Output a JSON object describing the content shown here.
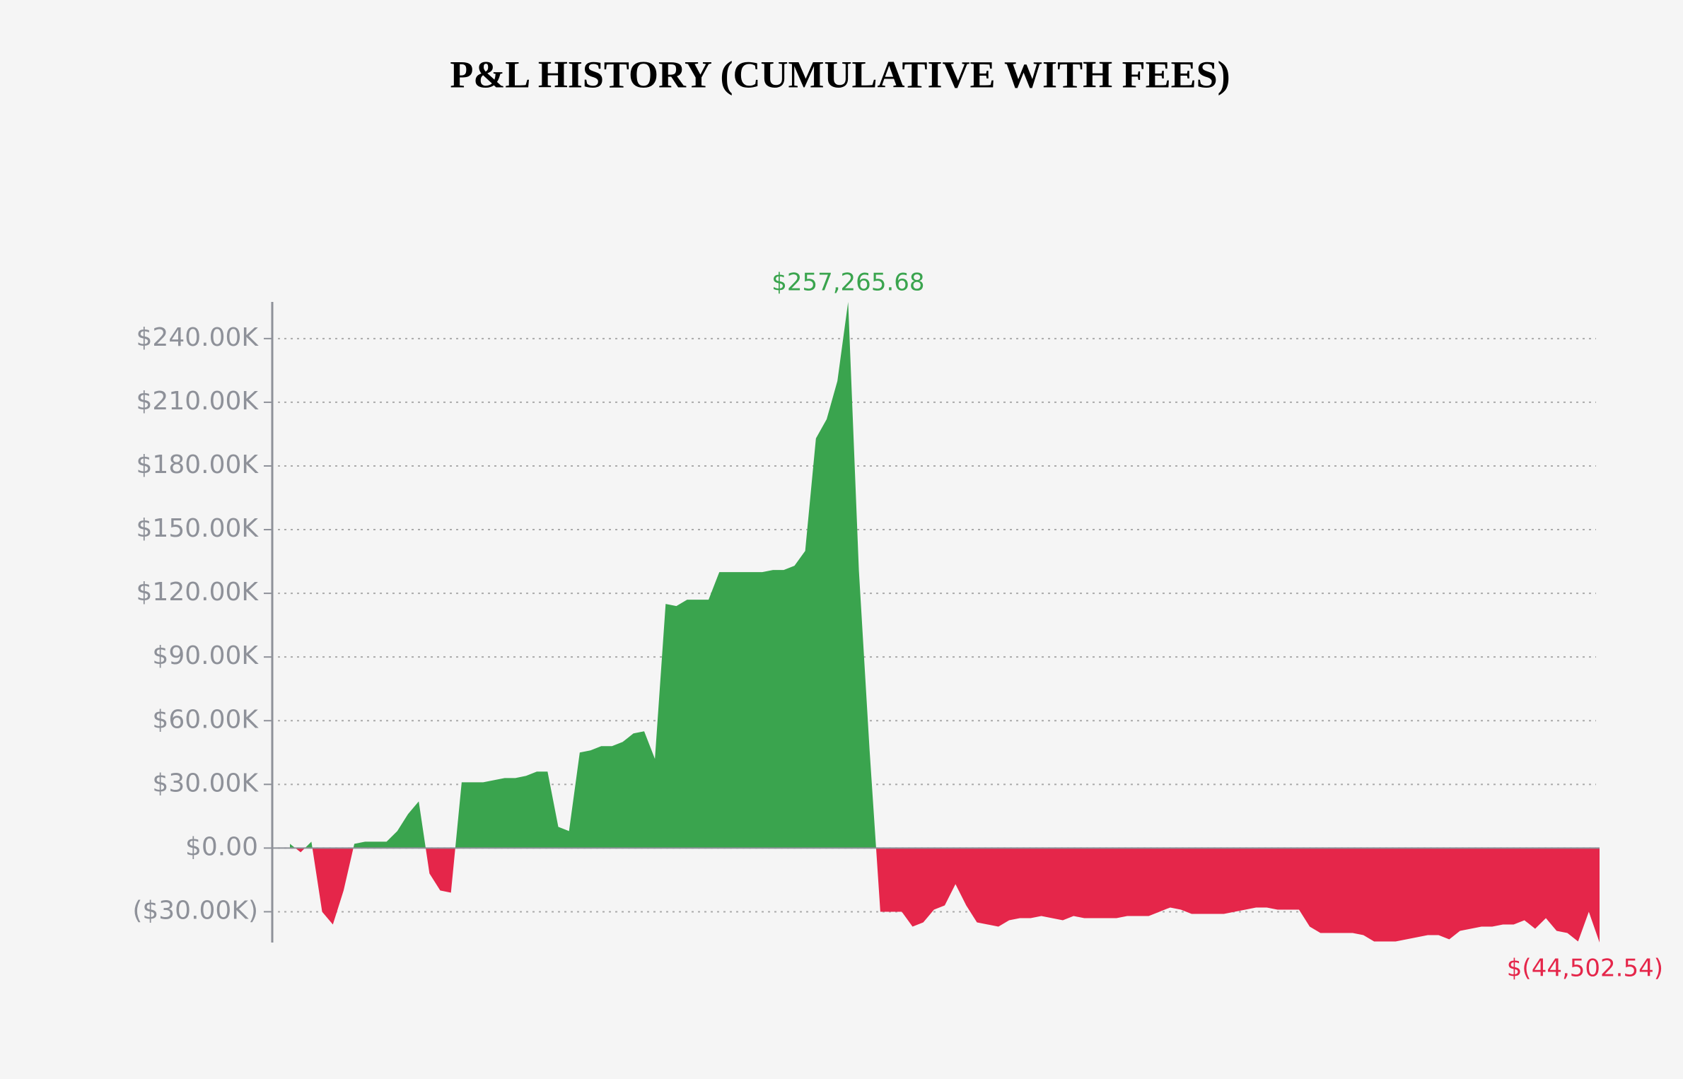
{
  "chart_data": {
    "type": "area",
    "title": "P&L HISTORY (CUMULATIVE WITH FEES)",
    "positive_color": "#3aa44e",
    "negative_color": "#e5264a",
    "grid": true,
    "ylim": [
      -44502.54,
      257265.68
    ],
    "yticks": [
      {
        "value": -30000,
        "label": "($30.00K)"
      },
      {
        "value": 0,
        "label": "$0.00"
      },
      {
        "value": 30000,
        "label": "$30.00K"
      },
      {
        "value": 60000,
        "label": "$60.00K"
      },
      {
        "value": 90000,
        "label": "$90.00K"
      },
      {
        "value": 120000,
        "label": "$120.00K"
      },
      {
        "value": 150000,
        "label": "$150.00K"
      },
      {
        "value": 180000,
        "label": "$180.00K"
      },
      {
        "value": 210000,
        "label": "$210.00K"
      },
      {
        "value": 240000,
        "label": "$240.00K"
      }
    ],
    "values": [
      2000,
      -2000,
      3000,
      -30000,
      -36000,
      -20000,
      2000,
      3000,
      3000,
      3000,
      8000,
      16000,
      22000,
      -12000,
      -20000,
      -21000,
      31000,
      31000,
      31000,
      32000,
      33000,
      33000,
      34000,
      36000,
      36000,
      10000,
      8000,
      45000,
      46000,
      48000,
      48000,
      50000,
      54000,
      55000,
      42000,
      115000,
      114000,
      117000,
      117000,
      117000,
      130000,
      130000,
      130000,
      130000,
      130000,
      131000,
      131000,
      133000,
      140000,
      193000,
      202000,
      220000,
      257265.68,
      131000,
      46000,
      -30000,
      -30000,
      -30000,
      -37000,
      -35000,
      -29000,
      -27000,
      -17000,
      -27000,
      -35000,
      -36000,
      -37000,
      -34000,
      -33000,
      -33000,
      -32000,
      -33000,
      -34000,
      -32000,
      -33000,
      -33000,
      -33000,
      -33000,
      -32000,
      -32000,
      -32000,
      -30000,
      -28000,
      -29000,
      -31000,
      -31000,
      -31000,
      -31000,
      -30000,
      -29000,
      -28000,
      -28000,
      -29000,
      -29000,
      -29000,
      -37000,
      -40000,
      -40000,
      -40000,
      -40000,
      -41000,
      -44000,
      -44000,
      -44000,
      -43000,
      -42000,
      -41000,
      -41000,
      -43000,
      -39000,
      -38000,
      -37000,
      -37000,
      -36000,
      -36000,
      -34000,
      -38000,
      -33000,
      -39000,
      -40000,
      -44000,
      -30000,
      -44502.54
    ],
    "annotations": [
      {
        "value": 257265.68,
        "label": "$257,265.68"
      },
      {
        "value": -44502.54,
        "label": "$(44,502.54)"
      }
    ]
  }
}
